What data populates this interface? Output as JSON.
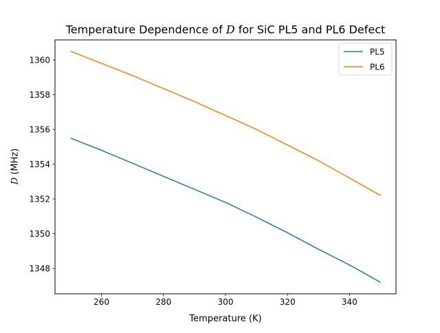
{
  "chart_data": {
    "type": "line",
    "title": {
      "prefix": "Temperature Dependence of ",
      "symbol": "D",
      "suffix": " for SiC PL5 and PL6 Defect"
    },
    "xlabel": "Temperature (K)",
    "ylabel": {
      "symbol": "D",
      "suffix": " (MHz)"
    },
    "xlim": [
      245,
      355
    ],
    "ylim": [
      1346.54,
      1361.15
    ],
    "xticks": [
      260,
      280,
      300,
      320,
      340
    ],
    "yticks": [
      1348,
      1350,
      1352,
      1354,
      1356,
      1358,
      1360
    ],
    "grid": false,
    "legend_position": "top-right",
    "series": [
      {
        "name": "PL5",
        "color": "#1f77b4",
        "x": [
          250,
          260,
          270,
          280,
          290,
          300,
          310,
          320,
          330,
          340,
          350
        ],
        "y": [
          1355.5,
          1354.8,
          1354.05,
          1353.3,
          1352.55,
          1351.8,
          1350.95,
          1350.05,
          1349.1,
          1348.2,
          1347.2
        ]
      },
      {
        "name": "PL6",
        "color": "#ff7f0e",
        "x": [
          250,
          260,
          270,
          280,
          290,
          300,
          310,
          320,
          330,
          340,
          350
        ],
        "y": [
          1360.5,
          1359.8,
          1359.1,
          1358.35,
          1357.6,
          1356.8,
          1356.0,
          1355.1,
          1354.2,
          1353.2,
          1352.2
        ]
      }
    ]
  }
}
